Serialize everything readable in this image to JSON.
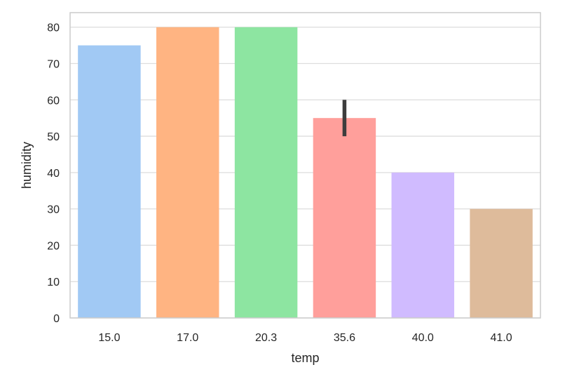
{
  "chart_data": {
    "type": "bar",
    "categories": [
      "15.0",
      "17.0",
      "20.3",
      "35.6",
      "40.0",
      "41.0"
    ],
    "values": [
      75,
      80,
      80,
      55,
      40,
      30
    ],
    "error_bars": [
      null,
      null,
      null,
      [
        50,
        60
      ],
      null,
      null
    ],
    "colors": [
      "#a1c9f4",
      "#ffb482",
      "#8de5a1",
      "#ff9f9b",
      "#d0bbff",
      "#debb9b"
    ],
    "error_bar_color": "#3d3d3d",
    "xlabel": "temp",
    "ylabel": "humidity",
    "ylim": [
      0,
      84
    ],
    "yticks": [
      0,
      10,
      20,
      30,
      40,
      50,
      60,
      70,
      80
    ],
    "grid": "horizontal",
    "grid_color": "#dddddd",
    "frame_color": "#cccccc"
  }
}
